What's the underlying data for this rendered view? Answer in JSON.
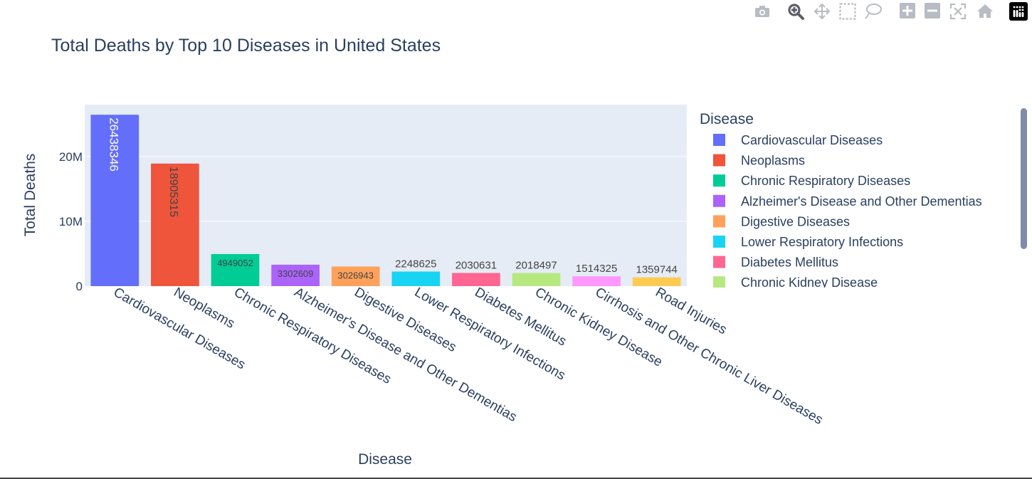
{
  "modebar": {
    "buttons": [
      {
        "name": "camera-icon"
      },
      {
        "name": "zoom-icon"
      },
      {
        "name": "pan-icon"
      },
      {
        "name": "box-select-icon"
      },
      {
        "name": "lasso-select-icon"
      },
      {
        "name": "zoom-in-icon"
      },
      {
        "name": "zoom-out-icon"
      },
      {
        "name": "autoscale-icon"
      },
      {
        "name": "reset-axes-icon"
      },
      {
        "name": "plotly-logo-icon"
      }
    ]
  },
  "chart_data": {
    "type": "bar",
    "title": "Total Deaths by Top 10 Diseases in United States",
    "xlabel": "Disease",
    "ylabel": "Total Deaths",
    "ylim": [
      0,
      28000000
    ],
    "yticks": [
      {
        "value": 0,
        "label": "0"
      },
      {
        "value": 10000000,
        "label": "10M"
      },
      {
        "value": 20000000,
        "label": "20M"
      }
    ],
    "grid": true,
    "legend": {
      "title": "Disease",
      "placement": "right",
      "scrollable": true
    },
    "categories": [
      "Cardiovascular Diseases",
      "Neoplasms",
      "Chronic Respiratory Diseases",
      "Alzheimer's Disease and Other Dementias",
      "Digestive Diseases",
      "Lower Respiratory Infections",
      "Diabetes Mellitus",
      "Chronic Kidney Disease",
      "Cirrhosis and Other Chronic Liver Diseases",
      "Road Injuries"
    ],
    "values": [
      26438346,
      18905315,
      4949052,
      3302609,
      3026943,
      2248625,
      2030631,
      2018497,
      1514325,
      1359744
    ],
    "labels": [
      "26438346",
      "18905315",
      "4949052",
      "3302609",
      "3026943",
      "2248625",
      "2030631",
      "2018497",
      "1514325",
      "1359744"
    ],
    "colors": [
      "#636efa",
      "#EF553B",
      "#00cc96",
      "#ab63fa",
      "#FFA15A",
      "#19d3f3",
      "#FF6692",
      "#B6E880",
      "#FF97FF",
      "#FECB52"
    ],
    "label_colors": [
      "#ffffff",
      "#444444",
      "#444444",
      "#444444",
      "#444444",
      "#444444",
      "#444444",
      "#444444",
      "#444444",
      "#444444"
    ]
  }
}
